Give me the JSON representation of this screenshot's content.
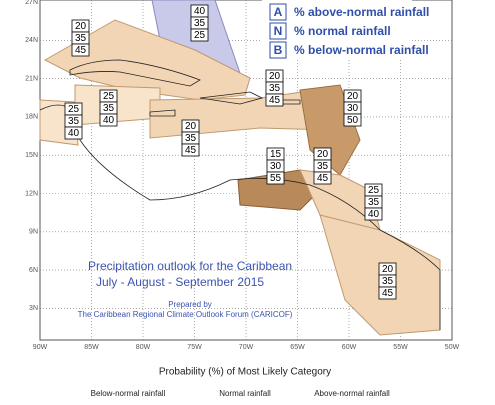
{
  "map": {
    "lat_labels": [
      "27N",
      "24N",
      "21N",
      "18N",
      "15N",
      "12N",
      "9N",
      "6N",
      "3N"
    ],
    "lon_labels": [
      "90W",
      "85W",
      "80W",
      "75W",
      "70W",
      "65W",
      "60W",
      "55W",
      "50W"
    ]
  },
  "legend": [
    {
      "letter": "A",
      "text": "% above-normal rainfall"
    },
    {
      "letter": "N",
      "text": "% normal rainfall"
    },
    {
      "letter": "B",
      "text": "% below-normal rainfall"
    }
  ],
  "title": {
    "line1": "Precipitation outlook for the Caribbean",
    "line2": "July - August - September 2015",
    "prepared": "Prepared by",
    "forum": "The Caribbean Regional Climate Outlook Forum (CARICOF)"
  },
  "zones": [
    {
      "a": 40,
      "n": 35,
      "b": 25
    },
    {
      "a": 20,
      "n": 35,
      "b": 45
    },
    {
      "a": 25,
      "n": 35,
      "b": 40
    },
    {
      "a": 25,
      "n": 35,
      "b": 40
    },
    {
      "a": 20,
      "n": 35,
      "b": 45
    },
    {
      "a": 20,
      "n": 35,
      "b": 45
    },
    {
      "a": 20,
      "n": 30,
      "b": 50
    },
    {
      "a": 15,
      "n": 30,
      "b": 55
    },
    {
      "a": 20,
      "n": 35,
      "b": 45
    },
    {
      "a": 25,
      "n": 35,
      "b": 40
    },
    {
      "a": 20,
      "n": 35,
      "b": 45
    }
  ],
  "footer": {
    "caption": "Probability (%) of Most Likely Category",
    "categories": [
      "Below-normal rainfall",
      "Normal rainfall",
      "Above-normal rainfall"
    ]
  }
}
